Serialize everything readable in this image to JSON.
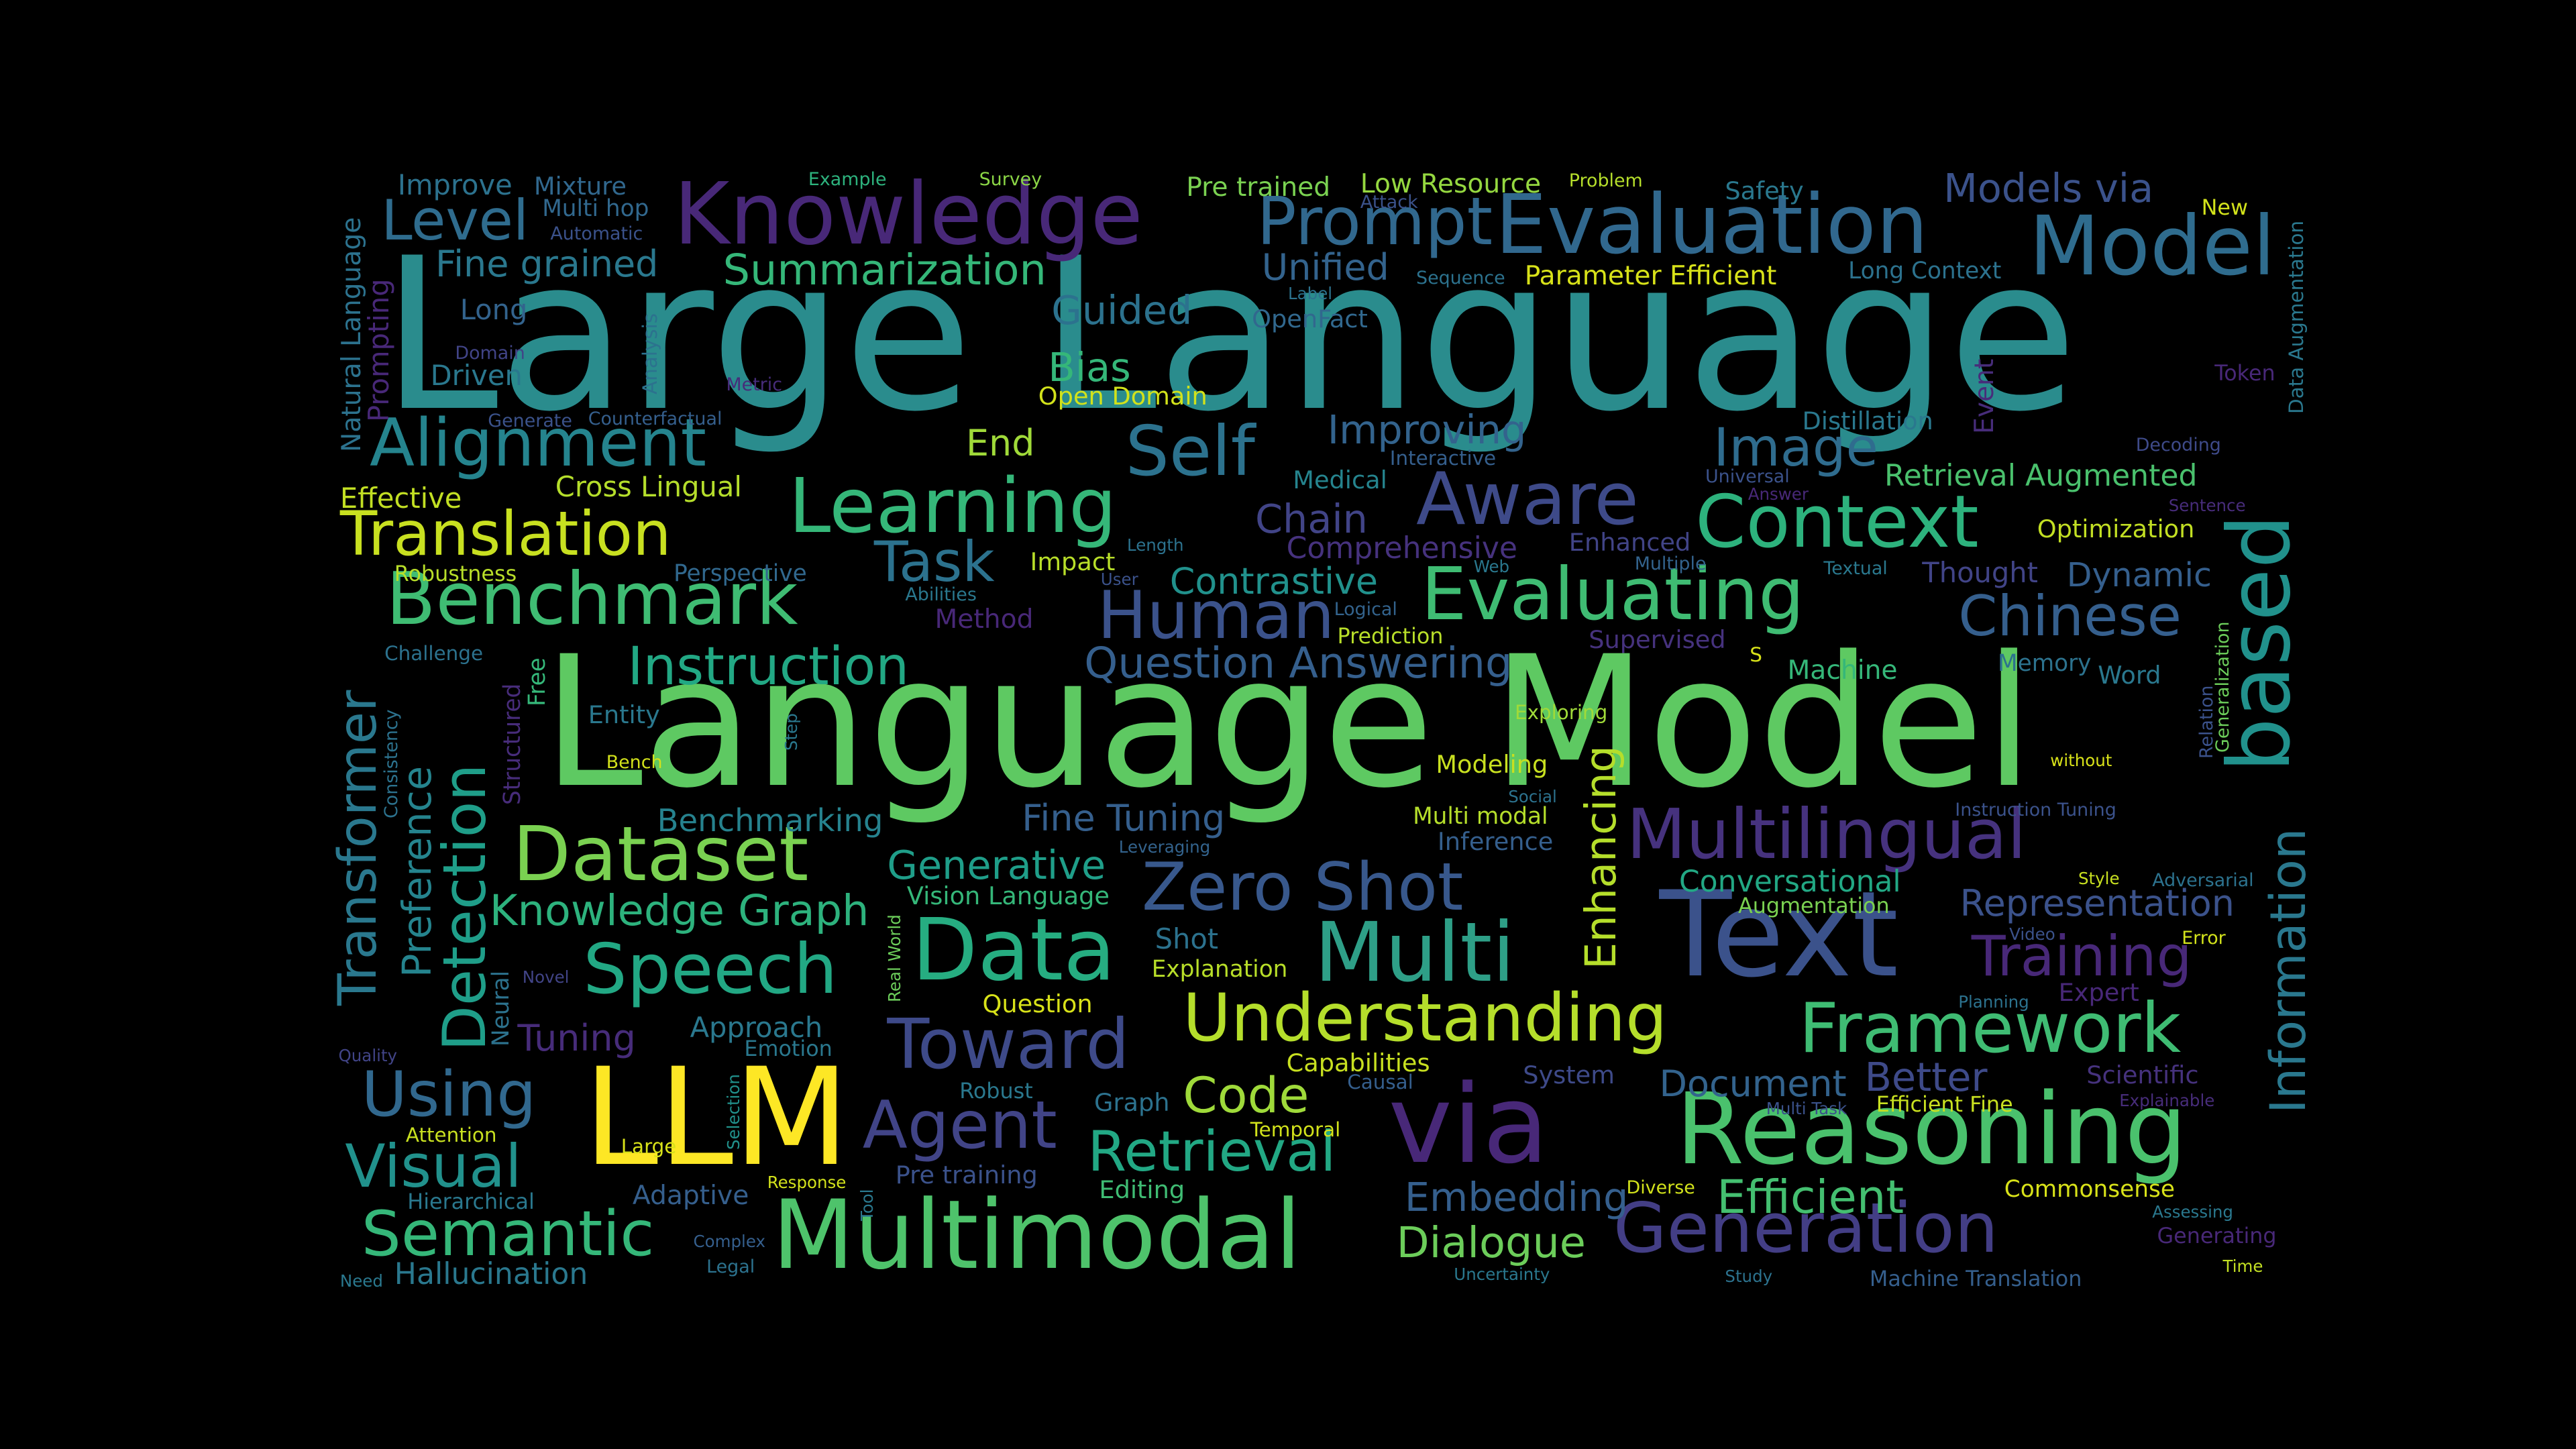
{
  "words": [
    {
      "text": "Large Language",
      "color": "#2a8c8d"
    },
    {
      "text": "Language Model",
      "color": "#5ec962"
    },
    {
      "text": "LLM",
      "color": "#fde725"
    },
    {
      "text": "Text",
      "color": "#3b528b"
    },
    {
      "text": "via",
      "color": "#482878"
    },
    {
      "text": "Reasoning",
      "color": "#4ac16d"
    },
    {
      "text": "Multimodal",
      "color": "#4ec36b"
    },
    {
      "text": "Knowledge",
      "color": "#482878"
    },
    {
      "text": "Evaluation",
      "color": "#31688e"
    },
    {
      "text": "Model",
      "color": "#2f6c8e"
    },
    {
      "text": "based",
      "color": "#21918c"
    },
    {
      "text": "Multi",
      "color": "#2e9f87"
    },
    {
      "text": "Data",
      "color": "#26ad81"
    },
    {
      "text": "Dataset",
      "color": "#7ad151"
    },
    {
      "text": "Benchmark",
      "color": "#3fbc73"
    },
    {
      "text": "Framework",
      "color": "#3fbc73"
    },
    {
      "text": "Generation",
      "color": "#433e85"
    },
    {
      "text": "Understanding",
      "color": "#b5de2b"
    },
    {
      "text": "Multilingual",
      "color": "#46327e"
    },
    {
      "text": "Learning",
      "color": "#35b779"
    },
    {
      "text": "Context",
      "color": "#2db27d"
    },
    {
      "text": "Evaluating",
      "color": "#3fbc73"
    },
    {
      "text": "Alignment",
      "color": "#25848e"
    },
    {
      "text": "Translation",
      "color": "#c8e020"
    },
    {
      "text": "Speech",
      "color": "#22a884"
    },
    {
      "text": "Toward",
      "color": "#3e4a89"
    },
    {
      "text": "Agent",
      "color": "#414487"
    },
    {
      "text": "Zero Shot",
      "color": "#38588c"
    },
    {
      "text": "Human",
      "color": "#3b528b"
    },
    {
      "text": "Aware",
      "color": "#3e4a89"
    },
    {
      "text": "Prompt",
      "color": "#31688e"
    },
    {
      "text": "Self",
      "color": "#2c728e"
    },
    {
      "text": "Semantic",
      "color": "#35b779"
    },
    {
      "text": "Visual",
      "color": "#21918c"
    },
    {
      "text": "Using",
      "color": "#31688e"
    },
    {
      "text": "Retrieval",
      "color": "#22a884"
    },
    {
      "text": "Information",
      "color": "#2a788e"
    },
    {
      "text": "Transformer",
      "color": "#2a788e"
    },
    {
      "text": "Detection",
      "color": "#1f9e89"
    },
    {
      "text": "Instruction",
      "color": "#22a884"
    },
    {
      "text": "Training",
      "color": "#482878"
    },
    {
      "text": "Chinese",
      "color": "#355f8d"
    },
    {
      "text": "Efficient",
      "color": "#44bf70"
    },
    {
      "text": "Code",
      "color": "#9fda3a"
    },
    {
      "text": "Image",
      "color": "#2f6c8e"
    },
    {
      "text": "Level",
      "color": "#2f6c8e"
    },
    {
      "text": "Summarization",
      "color": "#35b779"
    },
    {
      "text": "Task",
      "color": "#2c728e"
    },
    {
      "text": "Knowledge Graph",
      "color": "#2db27d"
    },
    {
      "text": "Dialogue",
      "color": "#6ccd5a"
    },
    {
      "text": "Embedding",
      "color": "#355f8d"
    },
    {
      "text": "Question Answering",
      "color": "#355f8d"
    },
    {
      "text": "Enhancing",
      "color": "#b5de2b"
    },
    {
      "text": "Preference",
      "color": "#25848e"
    },
    {
      "text": "Representation",
      "color": "#3b528b"
    },
    {
      "text": "Document",
      "color": "#33638d"
    },
    {
      "text": "Better",
      "color": "#3e4a89"
    },
    {
      "text": "Generative",
      "color": "#1f9e89"
    },
    {
      "text": "Contrastive",
      "color": "#21918c"
    },
    {
      "text": "Guided",
      "color": "#2c728e"
    },
    {
      "text": "Unified",
      "color": "#33638d"
    },
    {
      "text": "Bias",
      "color": "#35b779"
    },
    {
      "text": "End",
      "color": "#a0da39"
    },
    {
      "text": "Improving",
      "color": "#33638d"
    },
    {
      "text": "Chain",
      "color": "#414487"
    },
    {
      "text": "Fine Tuning",
      "color": "#355f8d"
    },
    {
      "text": "Benchmarking",
      "color": "#26828e"
    },
    {
      "text": "Tuning",
      "color": "#472c7a"
    },
    {
      "text": "Hallucination",
      "color": "#2a788e"
    },
    {
      "text": "Conversational",
      "color": "#22a884"
    },
    {
      "text": "Retrieval Augmented",
      "color": "#4ac16d"
    },
    {
      "text": "Models via",
      "color": "#3b528b"
    },
    {
      "text": "Cross Lingual",
      "color": "#b5de2b"
    },
    {
      "text": "Effective",
      "color": "#c2df23"
    },
    {
      "text": "Fine grained",
      "color": "#2a788e"
    },
    {
      "text": "Improve",
      "color": "#2c728e"
    },
    {
      "text": "Mixture",
      "color": "#31688e"
    },
    {
      "text": "Multi hop",
      "color": "#31688e"
    },
    {
      "text": "Automatic",
      "color": "#3b528b"
    },
    {
      "text": "Long",
      "color": "#33638d"
    },
    {
      "text": "Domain",
      "color": "#414487"
    },
    {
      "text": "Driven",
      "color": "#2a788e"
    },
    {
      "text": "Prompting",
      "color": "#482878"
    },
    {
      "text": "Natural Language",
      "color": "#2c728e"
    },
    {
      "text": "Analysis",
      "color": "#2c728e"
    },
    {
      "text": "Counterfactual",
      "color": "#355f8d"
    },
    {
      "text": "Generate",
      "color": "#3b528b"
    },
    {
      "text": "Metric",
      "color": "#472c7a"
    },
    {
      "text": "Example",
      "color": "#2db27d"
    },
    {
      "text": "Survey",
      "color": "#8bd646"
    },
    {
      "text": "Pre trained",
      "color": "#7ad151"
    },
    {
      "text": "Low Resource",
      "color": "#95d840"
    },
    {
      "text": "Problem",
      "color": "#b5de2b"
    },
    {
      "text": "Attack",
      "color": "#3b528b"
    },
    {
      "text": "Safety",
      "color": "#2a788e"
    },
    {
      "text": "New",
      "color": "#d2e21b"
    },
    {
      "text": "Parameter Efficient",
      "color": "#d8e219"
    },
    {
      "text": "Long Context",
      "color": "#2c728e"
    },
    {
      "text": "Sequence",
      "color": "#2c728e"
    },
    {
      "text": "Label",
      "color": "#2c728e"
    },
    {
      "text": "OpenFact",
      "color": "#31688e"
    },
    {
      "text": "Open Domain",
      "color": "#d2e21b"
    },
    {
      "text": "Distillation",
      "color": "#2a788e"
    },
    {
      "text": "Event",
      "color": "#472c7a"
    },
    {
      "text": "Token",
      "color": "#482878"
    },
    {
      "text": "Data Augmentation",
      "color": "#2a788e"
    },
    {
      "text": "Decoding",
      "color": "#3e4a89"
    },
    {
      "text": "Interactive",
      "color": "#355f8d"
    },
    {
      "text": "Medical",
      "color": "#25848e"
    },
    {
      "text": "Universal",
      "color": "#3b528b"
    },
    {
      "text": "Answer",
      "color": "#482878"
    },
    {
      "text": "Sentence",
      "color": "#472c7a"
    },
    {
      "text": "Optimization",
      "color": "#c2df23"
    },
    {
      "text": "Comprehensive",
      "color": "#46327e"
    },
    {
      "text": "Enhanced",
      "color": "#414487"
    },
    {
      "text": "Length",
      "color": "#2c728e"
    },
    {
      "text": "Impact",
      "color": "#b8de29"
    },
    {
      "text": "Web",
      "color": "#2a788e"
    },
    {
      "text": "Multiple",
      "color": "#33638d"
    },
    {
      "text": "Textual",
      "color": "#2a788e"
    },
    {
      "text": "Thought",
      "color": "#414487"
    },
    {
      "text": "Dynamic",
      "color": "#355f8d"
    },
    {
      "text": "Robustness",
      "color": "#b8de29"
    },
    {
      "text": "Perspective",
      "color": "#31688e"
    },
    {
      "text": "Abilities",
      "color": "#2a788e"
    },
    {
      "text": "User",
      "color": "#3b528b"
    },
    {
      "text": "Logical",
      "color": "#33638d"
    },
    {
      "text": "Prediction",
      "color": "#b8de29"
    },
    {
      "text": "Supervised",
      "color": "#46327e"
    },
    {
      "text": "Method",
      "color": "#482878"
    },
    {
      "text": "Challenge",
      "color": "#2c728e"
    },
    {
      "text": "Structured",
      "color": "#472c7a"
    },
    {
      "text": "Free",
      "color": "#35b779"
    },
    {
      "text": "Entity",
      "color": "#2a788e"
    },
    {
      "text": "Consistency",
      "color": "#2c728e"
    },
    {
      "text": "Step",
      "color": "#2a788e"
    },
    {
      "text": "Bench",
      "color": "#d2e21b"
    },
    {
      "text": "Exploring",
      "color": "#a0da39"
    },
    {
      "text": "Machine",
      "color": "#35b779"
    },
    {
      "text": "Memory",
      "color": "#2c728e"
    },
    {
      "text": "Word",
      "color": "#2a788e"
    },
    {
      "text": "Relation",
      "color": "#3b528b"
    },
    {
      "text": "Generalization",
      "color": "#6ccd5a"
    },
    {
      "text": "without",
      "color": "#d8e219"
    },
    {
      "text": "Modeling",
      "color": "#c8e020"
    },
    {
      "text": "Social",
      "color": "#2c728e"
    },
    {
      "text": "Multi modal",
      "color": "#b5de2b"
    },
    {
      "text": "Inference",
      "color": "#355f8d"
    },
    {
      "text": "Instruction Tuning",
      "color": "#3b528b"
    },
    {
      "text": "Leveraging",
      "color": "#33638d"
    },
    {
      "text": "Vision Language",
      "color": "#35b779"
    },
    {
      "text": "Style",
      "color": "#c8e020"
    },
    {
      "text": "Adversarial",
      "color": "#2c728e"
    },
    {
      "text": "Augmentation",
      "color": "#7ad151"
    },
    {
      "text": "Real World",
      "color": "#6ccd5a"
    },
    {
      "text": "Shot",
      "color": "#2c728e"
    },
    {
      "text": "Explanation",
      "color": "#b8de29"
    },
    {
      "text": "Question",
      "color": "#d8e219"
    },
    {
      "text": "Video",
      "color": "#3b528b"
    },
    {
      "text": "Error",
      "color": "#d2e21b"
    },
    {
      "text": "Expert",
      "color": "#482878"
    },
    {
      "text": "Planning",
      "color": "#2c728e"
    },
    {
      "text": "Novel",
      "color": "#414487"
    },
    {
      "text": "Neural",
      "color": "#2c728e"
    },
    {
      "text": "Approach",
      "color": "#2a788e"
    },
    {
      "text": "Emotion",
      "color": "#2a788e"
    },
    {
      "text": "Quality",
      "color": "#414487"
    },
    {
      "text": "Graph",
      "color": "#2c728e"
    },
    {
      "text": "Capabilities",
      "color": "#c8e020"
    },
    {
      "text": "Causal",
      "color": "#355f8d"
    },
    {
      "text": "System",
      "color": "#3e4a89"
    },
    {
      "text": "Robust",
      "color": "#2a788e"
    },
    {
      "text": "Scientific",
      "color": "#46327e"
    },
    {
      "text": "Selection",
      "color": "#21918c"
    },
    {
      "text": "Multi Task",
      "color": "#3b528b"
    },
    {
      "text": "Efficient Fine",
      "color": "#c8e020"
    },
    {
      "text": "Explainable",
      "color": "#472c7a"
    },
    {
      "text": "Attention",
      "color": "#c8e020"
    },
    {
      "text": "Large",
      "color": "#d8e219"
    },
    {
      "text": "Temporal",
      "color": "#d2e21b"
    },
    {
      "text": "Response",
      "color": "#d2e21b"
    },
    {
      "text": "Pre training",
      "color": "#3b528b"
    },
    {
      "text": "Editing",
      "color": "#3fbc73"
    },
    {
      "text": "Diverse",
      "color": "#d2e21b"
    },
    {
      "text": "Commonsense",
      "color": "#d8e219"
    },
    {
      "text": "Assessing",
      "color": "#2a788e"
    },
    {
      "text": "Generating",
      "color": "#482878"
    },
    {
      "text": "Hierarchical",
      "color": "#2a788e"
    },
    {
      "text": "Adaptive",
      "color": "#355f8d"
    },
    {
      "text": "Tool",
      "color": "#2a788e"
    },
    {
      "text": "Complex",
      "color": "#355f8d"
    },
    {
      "text": "Legal",
      "color": "#2c728e"
    },
    {
      "text": "Uncertainty",
      "color": "#2a788e"
    },
    {
      "text": "Study",
      "color": "#2c728e"
    },
    {
      "text": "Machine Translation",
      "color": "#355f8d"
    },
    {
      "text": "Time",
      "color": "#c2df23"
    },
    {
      "text": "Need",
      "color": "#2a788e"
    },
    {
      "text": "S",
      "color": "#d8e219"
    }
  ]
}
